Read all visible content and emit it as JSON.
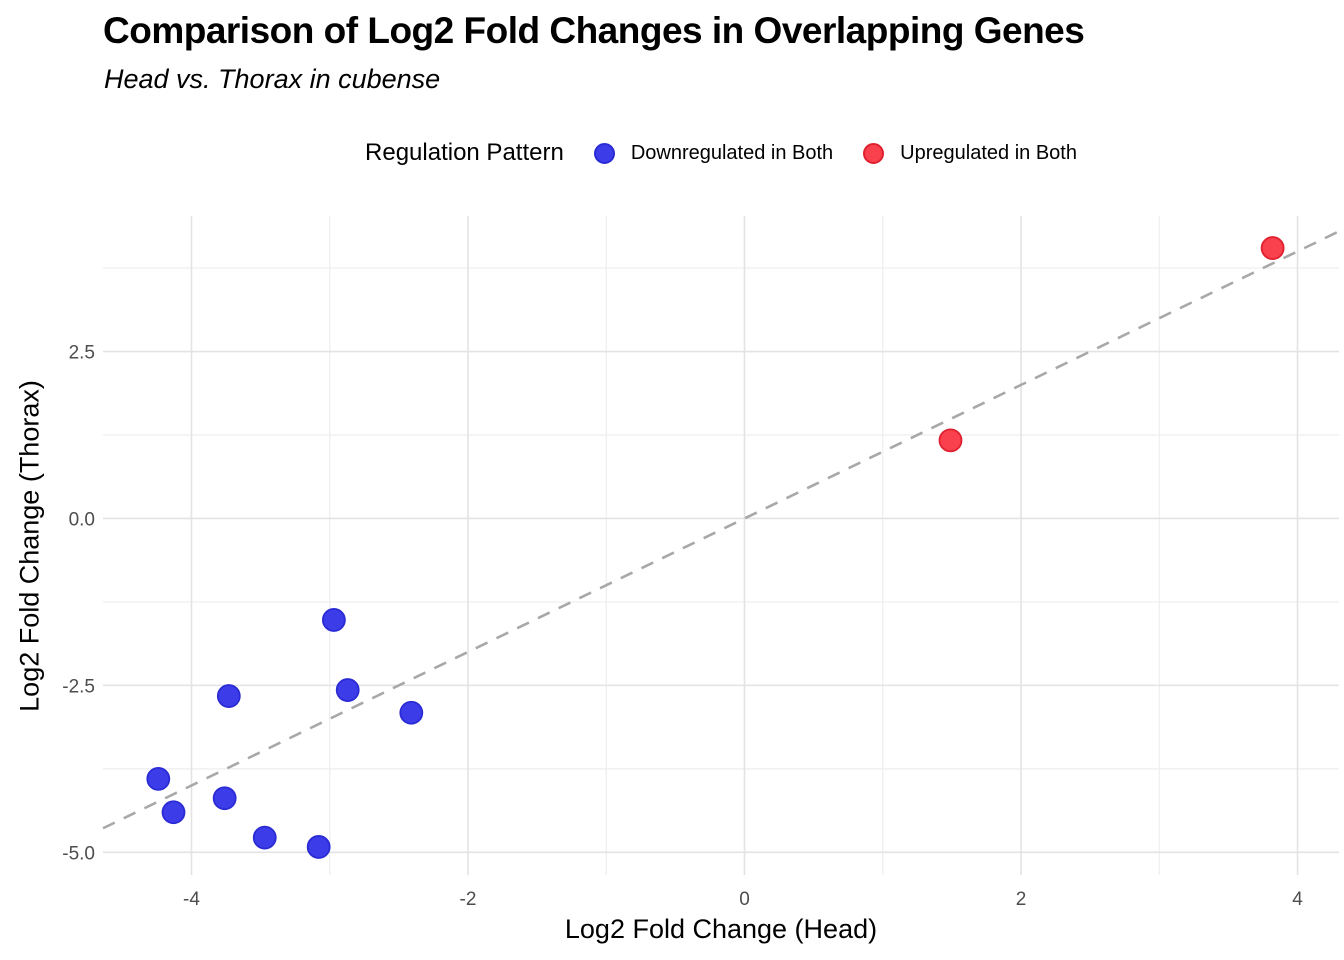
{
  "header": {
    "title": "Comparison of Log2 Fold Changes in Overlapping Genes",
    "subtitle": "Head vs. Thorax in cubense"
  },
  "legend": {
    "title": "Regulation Pattern",
    "position": "top-center",
    "items": [
      {
        "label": "Downregulated in Both",
        "color": "#3C3CE9",
        "border": "#2B2BD5",
        "shape": "circle"
      },
      {
        "label": "Upregulated in Both",
        "color": "#F8414D",
        "border": "#E0202E",
        "shape": "circle"
      }
    ]
  },
  "chart_data": {
    "type": "scatter",
    "title": "Comparison of Log2 Fold Changes in Overlapping Genes",
    "subtitle": "Head vs. Thorax in cubense",
    "xlabel": "Log2 Fold Change (Head)",
    "ylabel": "Log2 Fold Change (Thorax)",
    "xlim": [
      -4.64,
      4.3
    ],
    "ylim": [
      -5.34,
      4.53
    ],
    "x_major_ticks": [
      -4,
      -2,
      0,
      2,
      4
    ],
    "x_tick_labels": [
      "-4",
      "-2",
      "0",
      "2",
      "4"
    ],
    "x_minor_ticks": [
      -3,
      -1,
      1,
      3
    ],
    "y_major_ticks": [
      -5.0,
      -2.5,
      0.0,
      2.5
    ],
    "y_tick_labels": [
      "-5.0",
      "-2.5",
      "0.0",
      "2.5"
    ],
    "y_minor_ticks": [
      -3.75,
      -1.25,
      1.25,
      3.75
    ],
    "grid": {
      "on": true,
      "major_color": "#E3E3E3",
      "minor_color": "#EEEEEE"
    },
    "tick_label_color": "#4D4D4D",
    "reference_line": {
      "kind": "identity",
      "from": -4.64,
      "to": 4.3,
      "style": "dashed",
      "color": "#A8A8A8"
    },
    "series": [
      {
        "name": "Downregulated in Both",
        "color": "#3C3CE9",
        "stroke": "#2B2BD5",
        "points": [
          [
            -4.24,
            -3.9
          ],
          [
            -4.13,
            -4.4
          ],
          [
            -3.76,
            -4.19
          ],
          [
            -3.73,
            -2.66
          ],
          [
            -3.47,
            -4.78
          ],
          [
            -3.08,
            -4.92
          ],
          [
            -2.97,
            -1.52
          ],
          [
            -2.87,
            -2.57
          ],
          [
            -2.41,
            -2.91
          ]
        ]
      },
      {
        "name": "Upregulated in Both",
        "color": "#F8414D",
        "stroke": "#E0202E",
        "points": [
          [
            1.49,
            1.17
          ],
          [
            3.82,
            4.05
          ]
        ]
      }
    ]
  }
}
